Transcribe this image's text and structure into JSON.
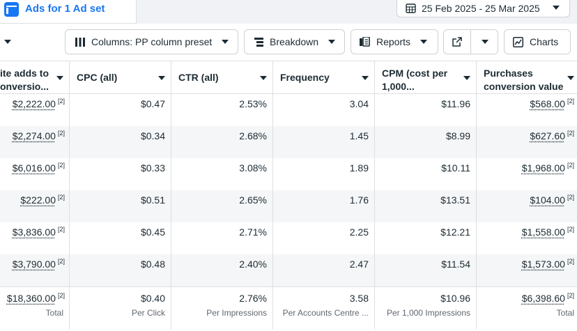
{
  "tab": {
    "label": "Ads for 1 Ad set"
  },
  "date_range": "25 Feb 2025 - 25 Mar 2025",
  "toolbar": {
    "columns": "Columns: PP column preset",
    "breakdown": "Breakdown",
    "reports": "Reports",
    "charts": "Charts"
  },
  "headers": {
    "col0": [
      "ite adds to",
      "onversio..."
    ],
    "col1": "CPC (all)",
    "col2": "CTR (all)",
    "col3": "Frequency",
    "col4": [
      "CPM (cost per",
      "1,000..."
    ],
    "col5": [
      "Purchases",
      "conversion value"
    ]
  },
  "footnote": "[2]",
  "rows": [
    {
      "adds": "$2,222.00",
      "cpc": "$0.47",
      "ctr": "2.53%",
      "freq": "3.04",
      "cpm": "$11.96",
      "pcv": "$568.00"
    },
    {
      "adds": "$2,274.00",
      "cpc": "$0.34",
      "ctr": "2.68%",
      "freq": "1.45",
      "cpm": "$8.99",
      "pcv": "$627.60"
    },
    {
      "adds": "$6,016.00",
      "cpc": "$0.33",
      "ctr": "3.08%",
      "freq": "1.89",
      "cpm": "$10.11",
      "pcv": "$1,968.00"
    },
    {
      "adds": "$222.00",
      "cpc": "$0.51",
      "ctr": "2.65%",
      "freq": "1.76",
      "cpm": "$13.51",
      "pcv": "$104.00"
    },
    {
      "adds": "$3,836.00",
      "cpc": "$0.45",
      "ctr": "2.71%",
      "freq": "2.25",
      "cpm": "$12.21",
      "pcv": "$1,558.00"
    },
    {
      "adds": "$3,790.00",
      "cpc": "$0.48",
      "ctr": "2.40%",
      "freq": "2.47",
      "cpm": "$11.54",
      "pcv": "$1,573.00"
    }
  ],
  "totals": {
    "adds": "$18,360.00",
    "adds_sub": "Total",
    "cpc": "$0.40",
    "cpc_sub": "Per Click",
    "ctr": "2.76%",
    "ctr_sub": "Per Impressions",
    "freq": "3.58",
    "freq_sub": "Per Accounts Centre ...",
    "cpm": "$10.96",
    "cpm_sub": "Per 1,000 Impressions",
    "pcv": "$6,398.60",
    "pcv_sub": "Total"
  },
  "colors": {
    "accent": "#1877f2",
    "border": "#dddfe2",
    "zebra": "#f5f6f7"
  }
}
